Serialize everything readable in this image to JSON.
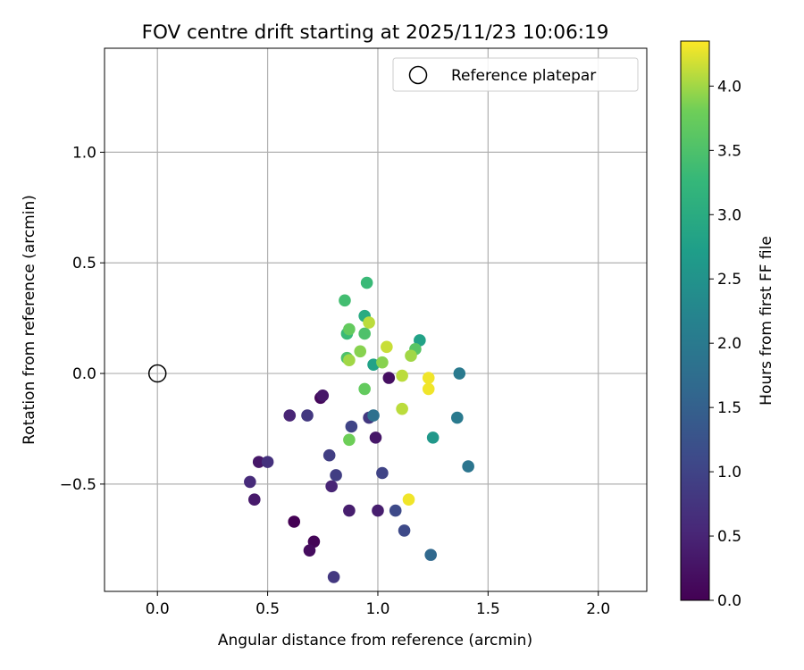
{
  "chart_data": {
    "type": "scatter",
    "title": "FOV centre drift starting at 2025/11/23 10:06:19",
    "xlabel": "Angular distance from reference (arcmin)",
    "ylabel": "Rotation from reference (arcmin)",
    "xlim": [
      -0.24,
      2.22
    ],
    "ylim": [
      -0.985,
      1.47
    ],
    "x_ticks": [
      0.0,
      0.5,
      1.0,
      1.5,
      2.0
    ],
    "x_tick_labels": [
      "0.0",
      "0.5",
      "1.0",
      "1.5",
      "2.0"
    ],
    "y_ticks": [
      -0.5,
      0.0,
      0.5,
      1.0
    ],
    "y_tick_labels": [
      "−0.5",
      "0.0",
      "0.5",
      "1.0"
    ],
    "grid": true,
    "legend": {
      "location": "upper-right",
      "entries": [
        "Reference platepar"
      ]
    },
    "reference_point": {
      "x": 0.0,
      "y": 0.0,
      "marker": "hollow-circle"
    },
    "colorbar": {
      "label": "Hours from first FF file",
      "colormap": "viridis",
      "range": [
        0.0,
        4.35
      ],
      "ticks": [
        0.0,
        0.5,
        1.0,
        1.5,
        2.0,
        2.5,
        3.0,
        3.5,
        4.0
      ],
      "tick_labels": [
        "0.0",
        "0.5",
        "1.0",
        "1.5",
        "2.0",
        "2.5",
        "3.0",
        "3.5",
        "4.0"
      ]
    },
    "points": [
      {
        "x": 0.62,
        "y": -0.67,
        "c": 0.0
      },
      {
        "x": 0.71,
        "y": -0.76,
        "c": 0.05
      },
      {
        "x": 0.74,
        "y": -0.11,
        "c": 0.1
      },
      {
        "x": 0.69,
        "y": -0.8,
        "c": 0.15
      },
      {
        "x": 1.05,
        "y": -0.02,
        "c": 0.2
      },
      {
        "x": 0.75,
        "y": -0.1,
        "c": 0.3
      },
      {
        "x": 0.46,
        "y": -0.4,
        "c": 0.3
      },
      {
        "x": 0.99,
        "y": -0.29,
        "c": 0.3
      },
      {
        "x": 0.44,
        "y": -0.57,
        "c": 0.35
      },
      {
        "x": 0.87,
        "y": -0.62,
        "c": 0.4
      },
      {
        "x": 1.0,
        "y": -0.62,
        "c": 0.4
      },
      {
        "x": 0.6,
        "y": -0.19,
        "c": 0.5
      },
      {
        "x": 0.79,
        "y": -0.51,
        "c": 0.5
      },
      {
        "x": 0.42,
        "y": -0.49,
        "c": 0.6
      },
      {
        "x": 0.5,
        "y": -0.4,
        "c": 0.7
      },
      {
        "x": 0.68,
        "y": -0.19,
        "c": 0.8
      },
      {
        "x": 0.8,
        "y": -0.92,
        "c": 0.8
      },
      {
        "x": 0.96,
        "y": -0.2,
        "c": 0.8
      },
      {
        "x": 0.78,
        "y": -0.37,
        "c": 0.9
      },
      {
        "x": 0.81,
        "y": -0.46,
        "c": 0.9
      },
      {
        "x": 0.88,
        "y": -0.24,
        "c": 1.0
      },
      {
        "x": 1.02,
        "y": -0.45,
        "c": 1.0
      },
      {
        "x": 1.08,
        "y": -0.62,
        "c": 1.1
      },
      {
        "x": 1.12,
        "y": -0.71,
        "c": 1.1
      },
      {
        "x": 1.24,
        "y": -0.82,
        "c": 1.65
      },
      {
        "x": 0.98,
        "y": -0.19,
        "c": 1.8
      },
      {
        "x": 1.41,
        "y": -0.42,
        "c": 1.9
      },
      {
        "x": 1.36,
        "y": -0.2,
        "c": 2.0
      },
      {
        "x": 1.37,
        "y": 0.0,
        "c": 2.0
      },
      {
        "x": 1.25,
        "y": -0.29,
        "c": 2.6
      },
      {
        "x": 1.19,
        "y": 0.15,
        "c": 2.8
      },
      {
        "x": 0.98,
        "y": 0.04,
        "c": 2.8
      },
      {
        "x": 0.94,
        "y": 0.26,
        "c": 3.0
      },
      {
        "x": 0.86,
        "y": 0.18,
        "c": 3.3
      },
      {
        "x": 0.95,
        "y": 0.41,
        "c": 3.3
      },
      {
        "x": 0.85,
        "y": 0.33,
        "c": 3.4
      },
      {
        "x": 0.94,
        "y": 0.18,
        "c": 3.5
      },
      {
        "x": 0.86,
        "y": 0.07,
        "c": 3.5
      },
      {
        "x": 1.17,
        "y": 0.11,
        "c": 3.6
      },
      {
        "x": 0.87,
        "y": 0.2,
        "c": 3.7
      },
      {
        "x": 0.94,
        "y": -0.07,
        "c": 3.7
      },
      {
        "x": 0.87,
        "y": -0.3,
        "c": 3.8
      },
      {
        "x": 0.92,
        "y": 0.1,
        "c": 3.9
      },
      {
        "x": 1.02,
        "y": 0.05,
        "c": 3.9
      },
      {
        "x": 1.15,
        "y": 0.08,
        "c": 4.0
      },
      {
        "x": 0.87,
        "y": 0.06,
        "c": 4.0
      },
      {
        "x": 1.11,
        "y": -0.01,
        "c": 4.1
      },
      {
        "x": 1.11,
        "y": -0.16,
        "c": 4.1
      },
      {
        "x": 0.96,
        "y": 0.23,
        "c": 4.1
      },
      {
        "x": 1.04,
        "y": 0.12,
        "c": 4.15
      },
      {
        "x": 1.23,
        "y": -0.02,
        "c": 4.3
      },
      {
        "x": 1.23,
        "y": -0.07,
        "c": 4.3
      },
      {
        "x": 1.14,
        "y": -0.57,
        "c": 4.3
      }
    ]
  }
}
